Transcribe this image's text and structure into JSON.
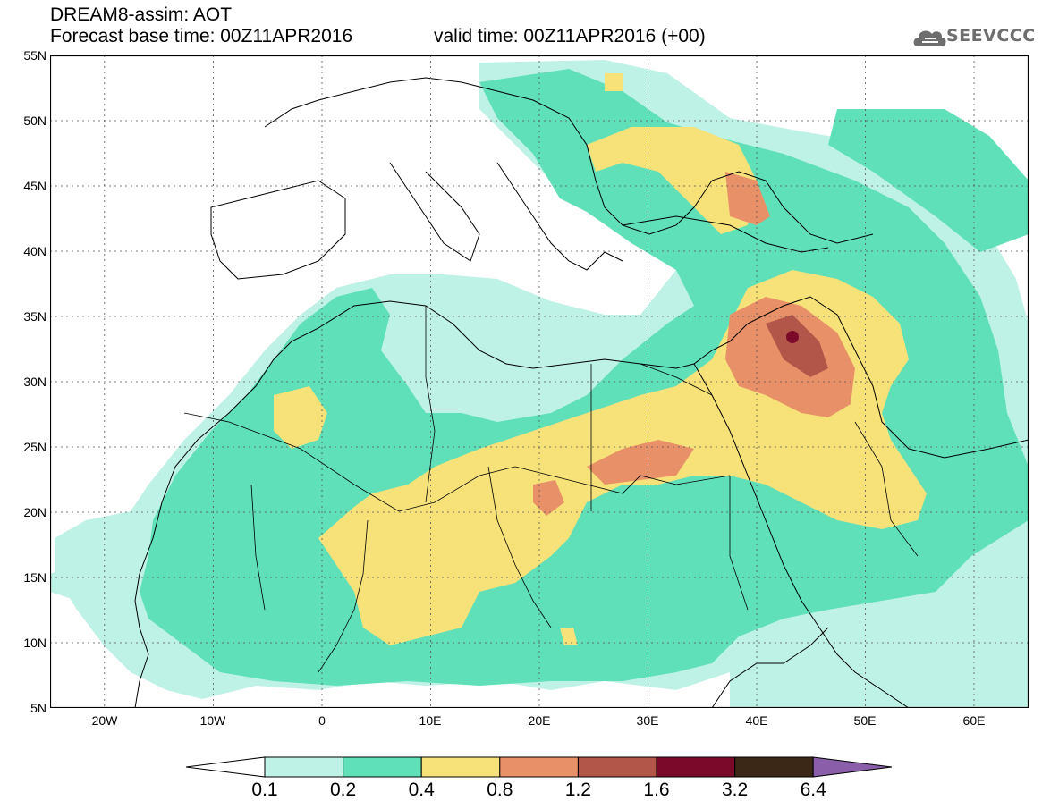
{
  "header": {
    "title": "DREAM8-assim: AOT",
    "base_time": "Forecast base time: 00Z11APR2016",
    "valid_time": "valid time: 00Z11APR2016 (+00)"
  },
  "logo": {
    "text": "SEEVCCC",
    "icon": "cloud-logo-icon",
    "color": "#6e6e6e"
  },
  "map": {
    "type": "filled-contour-map",
    "variable": "AOT",
    "lon_range": [
      -25,
      65
    ],
    "lat_range": [
      5,
      55
    ],
    "lat_labels": [
      "55N",
      "50N",
      "45N",
      "40N",
      "35N",
      "30N",
      "25N",
      "20N",
      "15N",
      "10N",
      "5N"
    ],
    "lon_labels": [
      "20W",
      "10W",
      "0",
      "10E",
      "20E",
      "30E",
      "40E",
      "50E",
      "60E"
    ],
    "grid": "dotted"
  },
  "colorbar": {
    "levels": [
      "0.1",
      "0.2",
      "0.4",
      "0.8",
      "1.2",
      "1.6",
      "3.2",
      "6.4"
    ],
    "colors": [
      "#ffffff",
      "#bff2e6",
      "#5fe0b8",
      "#f7e27a",
      "#e89168",
      "#b3564a",
      "#7b0a2a",
      "#3c2816",
      "#8a5ea8"
    ]
  }
}
